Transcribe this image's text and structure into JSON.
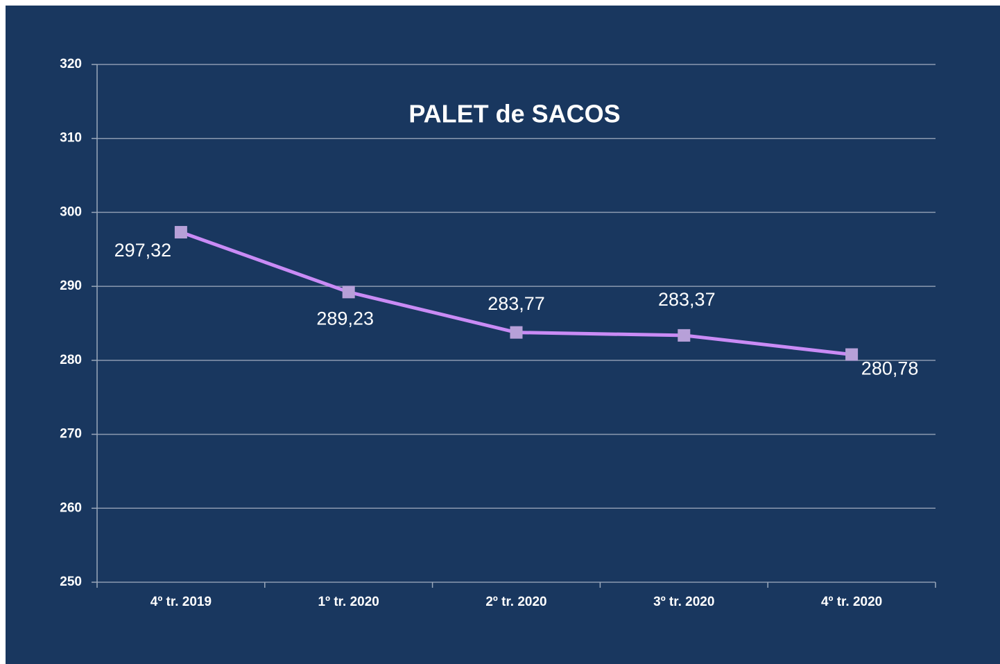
{
  "chart_data": {
    "type": "line",
    "title": "PALET de SACOS",
    "categories": [
      "4º tr. 2019",
      "1º tr. 2020",
      "2º tr. 2020",
      "3º tr. 2020",
      "4º tr. 2020"
    ],
    "series": [
      {
        "name": "PALET de SACOS",
        "color": "#c98bf5",
        "marker_color": "#b7a0d8",
        "values": [
          297.32,
          289.23,
          283.77,
          283.37,
          280.78
        ],
        "value_labels": [
          "297,32",
          "289,23",
          "283,77",
          "283,37",
          "280,78"
        ]
      }
    ],
    "ylim": [
      250,
      320
    ],
    "yticks": [
      250,
      260,
      270,
      280,
      290,
      300,
      310,
      320
    ],
    "grid": true
  }
}
